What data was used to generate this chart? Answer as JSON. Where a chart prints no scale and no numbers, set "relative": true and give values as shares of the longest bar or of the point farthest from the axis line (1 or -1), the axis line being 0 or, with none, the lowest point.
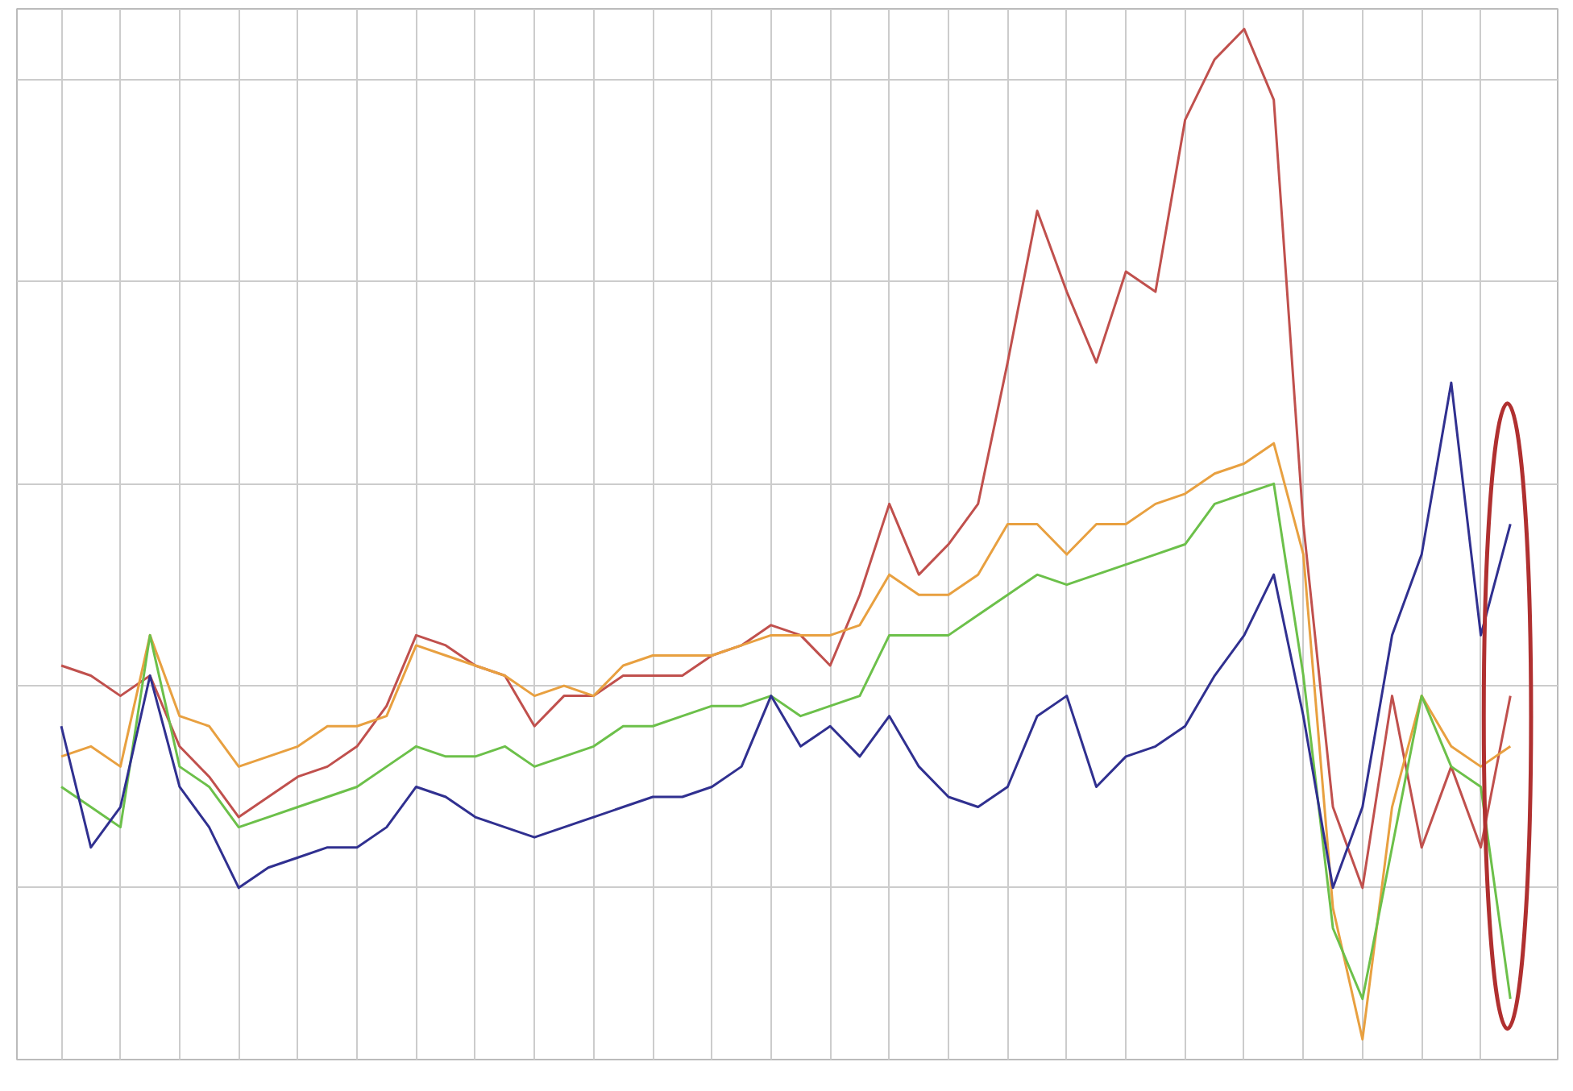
{
  "chart_data": {
    "type": "line",
    "relative": true,
    "grid": true,
    "categories": [
      null,
      null,
      null,
      null,
      null,
      null,
      null,
      null,
      null,
      null,
      null,
      null,
      null,
      null,
      null,
      null,
      null,
      null,
      null,
      null,
      null,
      null,
      null,
      null,
      null,
      null,
      null,
      null,
      null,
      null,
      null,
      null,
      null,
      null,
      null,
      null,
      null,
      null,
      null,
      null,
      null,
      null,
      null,
      null,
      null,
      null,
      null,
      null,
      null,
      null
    ],
    "series": [
      {
        "color": "#c0504d",
        "values": [
          0.37,
          0.36,
          0.34,
          0.36,
          0.29,
          0.26,
          0.22,
          0.24,
          0.26,
          0.27,
          0.29,
          0.33,
          0.4,
          0.39,
          0.37,
          0.36,
          0.31,
          0.34,
          0.34,
          0.36,
          0.36,
          0.36,
          0.38,
          0.39,
          0.41,
          0.4,
          0.37,
          0.44,
          0.53,
          0.46,
          0.49,
          0.53,
          0.67,
          0.82,
          0.74,
          0.67,
          0.76,
          0.74,
          0.91,
          0.97,
          1.0,
          0.93,
          0.51,
          0.23,
          0.15,
          0.34,
          0.19,
          0.27,
          0.19,
          0.34
        ]
      },
      {
        "color": "#e8a040",
        "values": [
          0.28,
          0.29,
          0.27,
          0.4,
          0.32,
          0.31,
          0.27,
          0.28,
          0.29,
          0.31,
          0.31,
          0.32,
          0.39,
          0.38,
          0.37,
          0.36,
          0.34,
          0.35,
          0.34,
          0.37,
          0.38,
          0.38,
          0.38,
          0.39,
          0.4,
          0.4,
          0.4,
          0.41,
          0.46,
          0.44,
          0.44,
          0.46,
          0.51,
          0.51,
          0.48,
          0.51,
          0.51,
          0.53,
          0.54,
          0.56,
          0.57,
          0.59,
          0.48,
          0.13,
          0.0,
          0.23,
          0.34,
          0.29,
          0.27,
          0.29
        ]
      },
      {
        "color": "#6cc04a",
        "values": [
          0.25,
          0.23,
          0.21,
          0.4,
          0.27,
          0.25,
          0.21,
          0.22,
          0.23,
          0.24,
          0.25,
          0.27,
          0.29,
          0.28,
          0.28,
          0.29,
          0.27,
          0.28,
          0.29,
          0.31,
          0.31,
          0.32,
          0.33,
          0.33,
          0.34,
          0.32,
          0.33,
          0.34,
          0.4,
          0.4,
          0.4,
          0.42,
          0.44,
          0.46,
          0.45,
          0.46,
          0.47,
          0.48,
          0.49,
          0.53,
          0.54,
          0.55,
          0.36,
          0.11,
          0.04,
          0.19,
          0.34,
          0.27,
          0.25,
          0.04
        ]
      },
      {
        "color": "#303090",
        "values": [
          0.31,
          0.19,
          0.23,
          0.36,
          0.25,
          0.21,
          0.15,
          0.17,
          0.18,
          0.19,
          0.19,
          0.21,
          0.25,
          0.24,
          0.22,
          0.21,
          0.2,
          0.21,
          0.22,
          0.23,
          0.24,
          0.24,
          0.25,
          0.27,
          0.34,
          0.29,
          0.31,
          0.28,
          0.32,
          0.27,
          0.24,
          0.23,
          0.25,
          0.32,
          0.34,
          0.25,
          0.28,
          0.29,
          0.31,
          0.36,
          0.4,
          0.46,
          0.32,
          0.15,
          0.23,
          0.4,
          0.48,
          0.65,
          0.4,
          0.51
        ]
      }
    ]
  }
}
